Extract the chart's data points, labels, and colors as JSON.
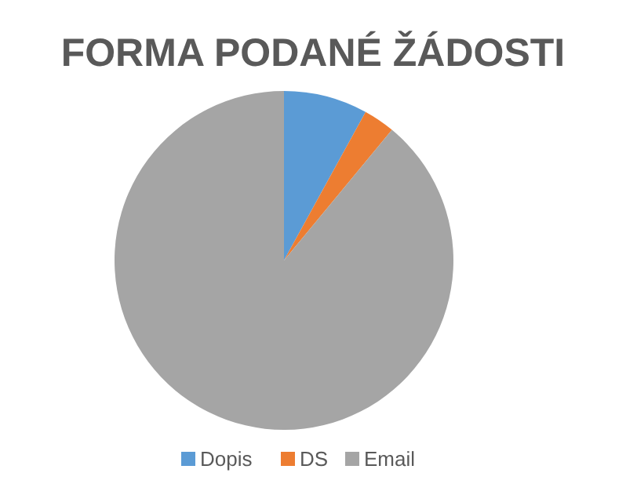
{
  "chart_data": {
    "type": "pie",
    "title": "FORMA PODANÉ ŽÁDOSTI",
    "categories": [
      "Dopis",
      "DS",
      "Email"
    ],
    "values": [
      8,
      3,
      89
    ],
    "colors": [
      "#5b9bd5",
      "#ed7d31",
      "#a5a5a5"
    ],
    "legend": "bottom"
  }
}
